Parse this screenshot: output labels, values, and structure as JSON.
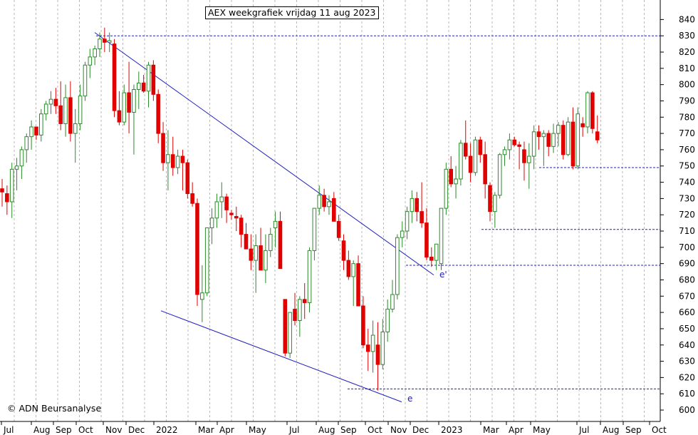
{
  "chart_data": {
    "type": "candlestick",
    "title": "AEX weekgrafiek vrijdag 11 aug 2023",
    "copyright": "© ADN Beursanalyse",
    "ylim": [
      593,
      852
    ],
    "y_ticks": [
      600,
      610,
      620,
      630,
      640,
      650,
      660,
      670,
      680,
      690,
      700,
      710,
      720,
      730,
      740,
      750,
      760,
      770,
      780,
      790,
      800,
      810,
      820,
      830,
      840
    ],
    "x_labels": [
      "Jul",
      "Aug",
      "Sep",
      "Oct",
      "Nov",
      "Dec",
      "2022",
      "Mar",
      "Apr",
      "May",
      "Jul",
      "Aug",
      "Sep",
      "Oct",
      "Nov",
      "Dec",
      "2023",
      "Mar",
      "Apr",
      "May",
      "Jul",
      "Aug",
      "Sep",
      "Oct"
    ],
    "colors": {
      "up": "#2a8a2a",
      "down": "#e00000",
      "trendline": "#2020c0",
      "support": "#2020c0",
      "grid": "#b8b8b8"
    },
    "annotations": [
      {
        "label": "e'"
      },
      {
        "label": "e"
      }
    ],
    "support_levels": [
      830,
      749,
      711,
      689,
      613
    ],
    "weeks": [
      {
        "o": 736,
        "h": 742,
        "l": 725,
        "c": 734
      },
      {
        "o": 733,
        "h": 738,
        "l": 720,
        "c": 728
      },
      {
        "o": 728,
        "h": 752,
        "l": 718,
        "c": 748
      },
      {
        "o": 748,
        "h": 755,
        "l": 735,
        "c": 750
      },
      {
        "o": 750,
        "h": 762,
        "l": 742,
        "c": 760
      },
      {
        "o": 760,
        "h": 770,
        "l": 752,
        "c": 768
      },
      {
        "o": 768,
        "h": 778,
        "l": 760,
        "c": 774
      },
      {
        "o": 774,
        "h": 774,
        "l": 766,
        "c": 769
      },
      {
        "o": 769,
        "h": 785,
        "l": 765,
        "c": 782
      },
      {
        "o": 782,
        "h": 790,
        "l": 778,
        "c": 788
      },
      {
        "o": 788,
        "h": 796,
        "l": 782,
        "c": 791
      },
      {
        "o": 791,
        "h": 798,
        "l": 782,
        "c": 787
      },
      {
        "o": 787,
        "h": 802,
        "l": 772,
        "c": 776
      },
      {
        "o": 776,
        "h": 800,
        "l": 768,
        "c": 792
      },
      {
        "o": 792,
        "h": 802,
        "l": 765,
        "c": 770
      },
      {
        "o": 770,
        "h": 785,
        "l": 752,
        "c": 776
      },
      {
        "o": 776,
        "h": 800,
        "l": 772,
        "c": 793
      },
      {
        "o": 793,
        "h": 814,
        "l": 790,
        "c": 812
      },
      {
        "o": 812,
        "h": 822,
        "l": 804,
        "c": 817
      },
      {
        "o": 817,
        "h": 824,
        "l": 812,
        "c": 822
      },
      {
        "o": 822,
        "h": 832,
        "l": 817,
        "c": 828
      },
      {
        "o": 828,
        "h": 835,
        "l": 820,
        "c": 826
      },
      {
        "o": 826,
        "h": 832,
        "l": 820,
        "c": 827
      },
      {
        "o": 825,
        "h": 828,
        "l": 780,
        "c": 784
      },
      {
        "o": 784,
        "h": 796,
        "l": 775,
        "c": 777
      },
      {
        "o": 777,
        "h": 800,
        "l": 775,
        "c": 795
      },
      {
        "o": 795,
        "h": 814,
        "l": 770,
        "c": 783
      },
      {
        "o": 783,
        "h": 800,
        "l": 757,
        "c": 797
      },
      {
        "o": 797,
        "h": 808,
        "l": 785,
        "c": 801
      },
      {
        "o": 801,
        "h": 806,
        "l": 795,
        "c": 796
      },
      {
        "o": 796,
        "h": 814,
        "l": 786,
        "c": 812
      },
      {
        "o": 812,
        "h": 815,
        "l": 790,
        "c": 794
      },
      {
        "o": 794,
        "h": 797,
        "l": 764,
        "c": 770
      },
      {
        "o": 770,
        "h": 777,
        "l": 747,
        "c": 752
      },
      {
        "o": 752,
        "h": 772,
        "l": 735,
        "c": 757
      },
      {
        "o": 757,
        "h": 768,
        "l": 744,
        "c": 749
      },
      {
        "o": 749,
        "h": 760,
        "l": 745,
        "c": 756
      },
      {
        "o": 756,
        "h": 760,
        "l": 735,
        "c": 752
      },
      {
        "o": 752,
        "h": 754,
        "l": 730,
        "c": 733
      },
      {
        "o": 733,
        "h": 740,
        "l": 725,
        "c": 727
      },
      {
        "o": 727,
        "h": 730,
        "l": 664,
        "c": 671
      },
      {
        "o": 668,
        "h": 689,
        "l": 654,
        "c": 672
      },
      {
        "o": 672,
        "h": 705,
        "l": 670,
        "c": 712
      },
      {
        "o": 712,
        "h": 724,
        "l": 702,
        "c": 718
      },
      {
        "o": 718,
        "h": 733,
        "l": 712,
        "c": 728
      },
      {
        "o": 728,
        "h": 740,
        "l": 718,
        "c": 731
      },
      {
        "o": 731,
        "h": 733,
        "l": 715,
        "c": 723
      },
      {
        "o": 721,
        "h": 723,
        "l": 717,
        "c": 720
      },
      {
        "o": 719,
        "h": 725,
        "l": 710,
        "c": 718
      },
      {
        "o": 718,
        "h": 720,
        "l": 700,
        "c": 708
      },
      {
        "o": 708,
        "h": 715,
        "l": 700,
        "c": 699
      },
      {
        "o": 699,
        "h": 708,
        "l": 686,
        "c": 692
      },
      {
        "o": 692,
        "h": 708,
        "l": 672,
        "c": 701
      },
      {
        "o": 701,
        "h": 712,
        "l": 694,
        "c": 686
      },
      {
        "o": 686,
        "h": 708,
        "l": 678,
        "c": 698
      },
      {
        "o": 698,
        "h": 712,
        "l": 694,
        "c": 708
      },
      {
        "o": 712,
        "h": 722,
        "l": 700,
        "c": 716
      },
      {
        "o": 716,
        "h": 722,
        "l": 692,
        "c": 687
      },
      {
        "o": 668,
        "h": 668,
        "l": 633,
        "c": 635
      },
      {
        "o": 635,
        "h": 660,
        "l": 632,
        "c": 660
      },
      {
        "o": 662,
        "h": 672,
        "l": 652,
        "c": 655
      },
      {
        "o": 655,
        "h": 670,
        "l": 645,
        "c": 668
      },
      {
        "o": 668,
        "h": 678,
        "l": 656,
        "c": 666
      },
      {
        "o": 666,
        "h": 700,
        "l": 660,
        "c": 698
      },
      {
        "o": 698,
        "h": 712,
        "l": 692,
        "c": 724
      },
      {
        "o": 724,
        "h": 738,
        "l": 720,
        "c": 732
      },
      {
        "o": 732,
        "h": 736,
        "l": 722,
        "c": 725
      },
      {
        "o": 725,
        "h": 732,
        "l": 720,
        "c": 728
      },
      {
        "o": 730,
        "h": 734,
        "l": 718,
        "c": 716
      },
      {
        "o": 716,
        "h": 720,
        "l": 704,
        "c": 706
      },
      {
        "o": 704,
        "h": 708,
        "l": 686,
        "c": 692
      },
      {
        "o": 692,
        "h": 698,
        "l": 680,
        "c": 682
      },
      {
        "o": 682,
        "h": 692,
        "l": 664,
        "c": 690
      },
      {
        "o": 690,
        "h": 695,
        "l": 665,
        "c": 664
      },
      {
        "o": 664,
        "h": 670,
        "l": 638,
        "c": 640
      },
      {
        "o": 640,
        "h": 650,
        "l": 624,
        "c": 636
      },
      {
        "o": 636,
        "h": 655,
        "l": 623,
        "c": 646
      },
      {
        "o": 640,
        "h": 654,
        "l": 612,
        "c": 628
      },
      {
        "o": 628,
        "h": 656,
        "l": 625,
        "c": 648
      },
      {
        "o": 648,
        "h": 668,
        "l": 642,
        "c": 662
      },
      {
        "o": 662,
        "h": 680,
        "l": 660,
        "c": 671
      },
      {
        "o": 671,
        "h": 708,
        "l": 668,
        "c": 706
      },
      {
        "o": 706,
        "h": 716,
        "l": 700,
        "c": 710
      },
      {
        "o": 710,
        "h": 725,
        "l": 705,
        "c": 722
      },
      {
        "o": 722,
        "h": 735,
        "l": 715,
        "c": 730
      },
      {
        "o": 730,
        "h": 734,
        "l": 716,
        "c": 722
      },
      {
        "o": 722,
        "h": 740,
        "l": 712,
        "c": 715
      },
      {
        "o": 715,
        "h": 724,
        "l": 692,
        "c": 694
      },
      {
        "o": 694,
        "h": 700,
        "l": 688,
        "c": 692
      },
      {
        "o": 692,
        "h": 702,
        "l": 686,
        "c": 702
      },
      {
        "o": 690,
        "h": 724,
        "l": 686,
        "c": 724
      },
      {
        "o": 724,
        "h": 752,
        "l": 720,
        "c": 748
      },
      {
        "o": 748,
        "h": 756,
        "l": 737,
        "c": 739
      },
      {
        "o": 739,
        "h": 750,
        "l": 730,
        "c": 742
      },
      {
        "o": 742,
        "h": 766,
        "l": 738,
        "c": 764
      },
      {
        "o": 764,
        "h": 778,
        "l": 754,
        "c": 756
      },
      {
        "o": 756,
        "h": 764,
        "l": 740,
        "c": 746
      },
      {
        "o": 746,
        "h": 768,
        "l": 744,
        "c": 766
      },
      {
        "o": 766,
        "h": 768,
        "l": 752,
        "c": 757
      },
      {
        "o": 757,
        "h": 765,
        "l": 730,
        "c": 739
      },
      {
        "o": 738,
        "h": 740,
        "l": 716,
        "c": 722
      },
      {
        "o": 722,
        "h": 734,
        "l": 712,
        "c": 732
      },
      {
        "o": 732,
        "h": 758,
        "l": 730,
        "c": 757
      },
      {
        "o": 757,
        "h": 762,
        "l": 750,
        "c": 760
      },
      {
        "o": 760,
        "h": 770,
        "l": 754,
        "c": 766
      },
      {
        "o": 766,
        "h": 768,
        "l": 762,
        "c": 763
      },
      {
        "o": 763,
        "h": 765,
        "l": 748,
        "c": 762
      },
      {
        "o": 760,
        "h": 765,
        "l": 741,
        "c": 752
      },
      {
        "o": 752,
        "h": 764,
        "l": 736,
        "c": 756
      },
      {
        "o": 756,
        "h": 775,
        "l": 748,
        "c": 771
      },
      {
        "o": 771,
        "h": 775,
        "l": 760,
        "c": 768
      },
      {
        "o": 768,
        "h": 772,
        "l": 750,
        "c": 770
      },
      {
        "o": 770,
        "h": 772,
        "l": 756,
        "c": 762
      },
      {
        "o": 762,
        "h": 776,
        "l": 758,
        "c": 770
      },
      {
        "o": 770,
        "h": 777,
        "l": 762,
        "c": 775
      },
      {
        "o": 775,
        "h": 778,
        "l": 754,
        "c": 757
      },
      {
        "o": 757,
        "h": 780,
        "l": 756,
        "c": 777
      },
      {
        "o": 777,
        "h": 786,
        "l": 748,
        "c": 750
      },
      {
        "o": 750,
        "h": 786,
        "l": 748,
        "c": 782
      },
      {
        "o": 776,
        "h": 780,
        "l": 768,
        "c": 774
      },
      {
        "o": 774,
        "h": 796,
        "l": 770,
        "c": 795
      },
      {
        "o": 795,
        "h": 796,
        "l": 770,
        "c": 773
      },
      {
        "o": 771,
        "h": 781,
        "l": 764,
        "c": 766
      }
    ]
  }
}
